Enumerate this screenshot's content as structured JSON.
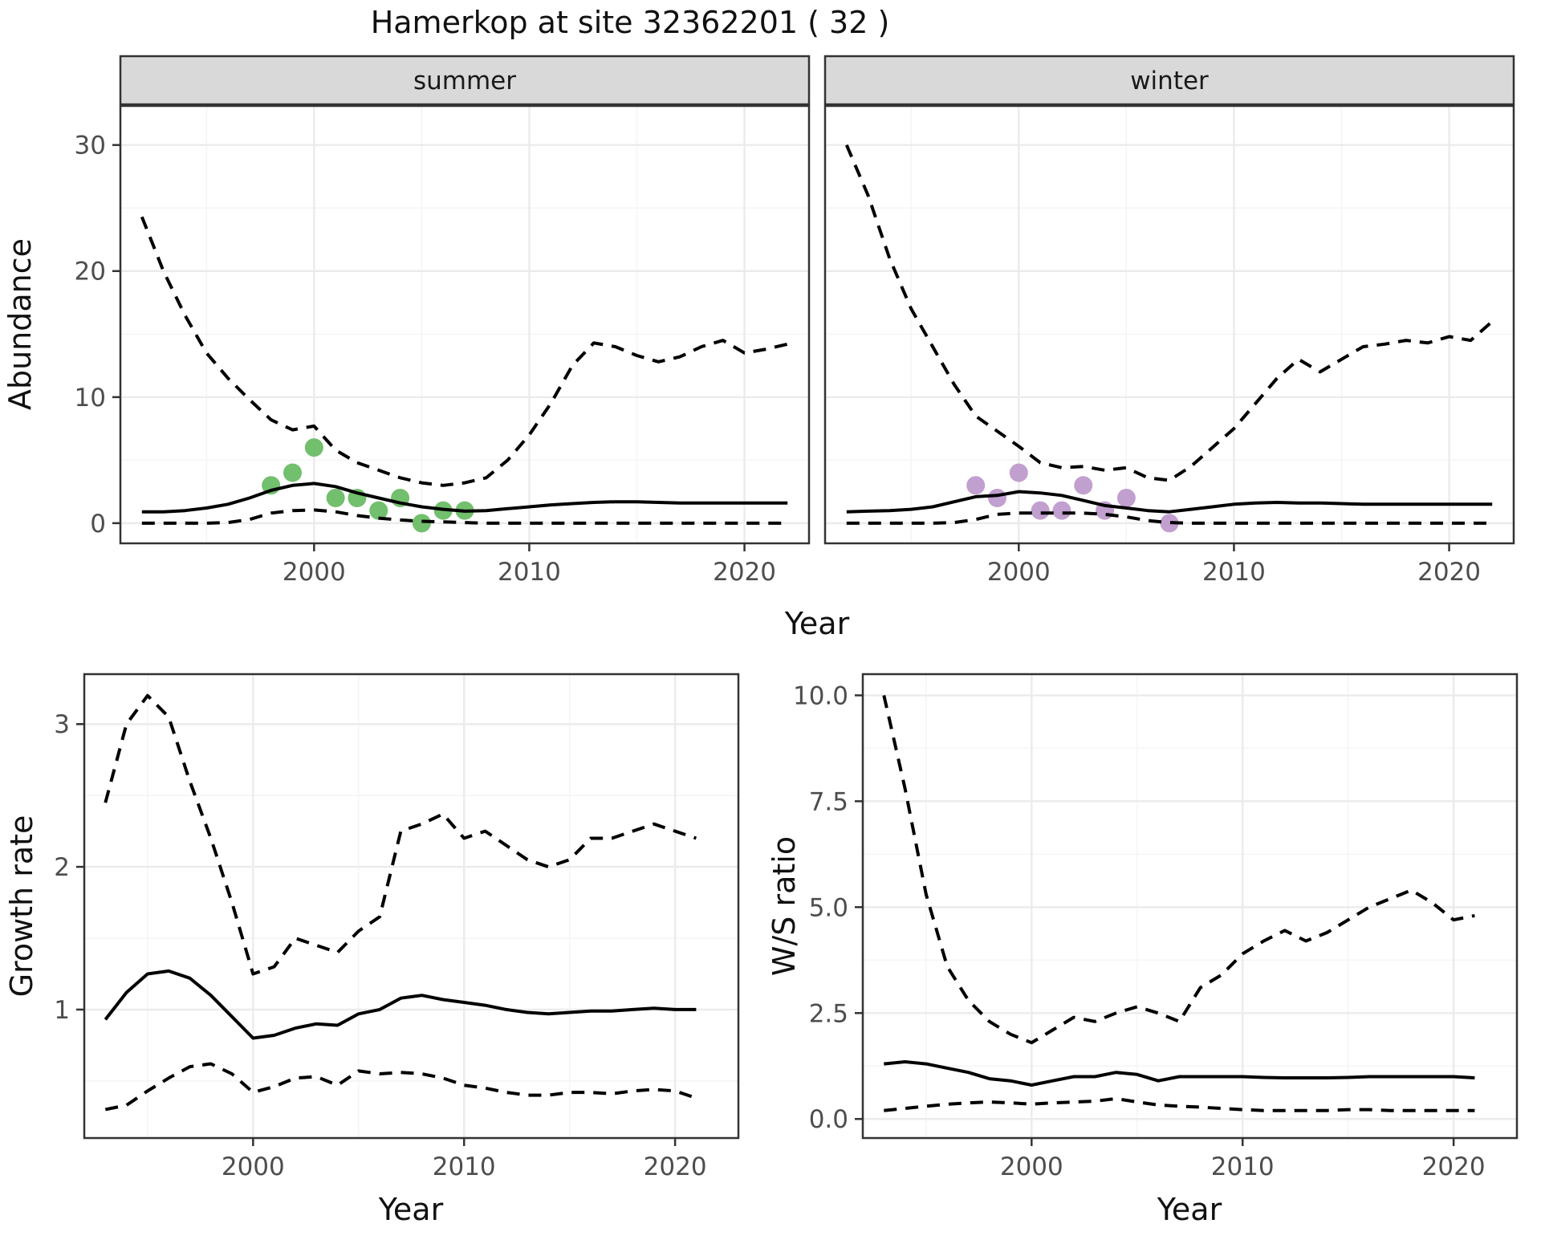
{
  "title": "Hamerkop at site 32362201 ( 32 )",
  "colors": {
    "summer_point": "#72bf6d",
    "winter_point": "#c19fcf",
    "line": "#000000",
    "strip_bg": "#d9d9d9",
    "panel_border": "#333333",
    "grid_major": "#ebebeb",
    "grid_minor": "#f5f5f5",
    "tick_label": "#4d4d4d",
    "axis_title": "#111111"
  },
  "chart_data": [
    {
      "id": "abundance-summer",
      "type": "line",
      "strip_label": "summer",
      "ylabel": "Abundance",
      "xlabel": "Year",
      "x_range": [
        1991,
        2023
      ],
      "y_range": [
        -1.6,
        33.1
      ],
      "x_ticks": [
        2000,
        2010,
        2020
      ],
      "x_tick_labels": [
        "2000",
        "2010",
        "2020"
      ],
      "x_minor": [
        1995,
        2005,
        2015
      ],
      "y_ticks": [
        0,
        10,
        20,
        30
      ],
      "y_tick_labels": [
        "0",
        "10",
        "20",
        "30"
      ],
      "y_minor": [
        5,
        15,
        25
      ],
      "series": [
        {
          "name": "ci-upper",
          "style": "dashed",
          "x_start": 1992,
          "values": [
            24.3,
            20,
            16.5,
            13.5,
            11.5,
            9.8,
            8.2,
            7.4,
            7.7,
            5.8,
            4.8,
            4.2,
            3.6,
            3.2,
            3.0,
            3.2,
            3.6,
            5.0,
            7.0,
            9.5,
            12.5,
            14.3,
            14.0,
            13.3,
            12.8,
            13.2,
            14.0,
            14.5,
            13.5,
            13.8,
            14.2
          ]
        },
        {
          "name": "median",
          "style": "solid",
          "x_start": 1992,
          "values": [
            0.9,
            0.9,
            1.0,
            1.2,
            1.5,
            2.0,
            2.6,
            3.0,
            3.15,
            2.9,
            2.4,
            2.0,
            1.6,
            1.3,
            1.1,
            0.95,
            1.0,
            1.15,
            1.3,
            1.45,
            1.55,
            1.65,
            1.7,
            1.7,
            1.65,
            1.6,
            1.6,
            1.6,
            1.6,
            1.6,
            1.6
          ]
        },
        {
          "name": "ci-lower",
          "style": "dashed",
          "x_start": 1992,
          "values": [
            0,
            0,
            0,
            0,
            0.05,
            0.3,
            0.8,
            1.0,
            1.05,
            0.9,
            0.6,
            0.4,
            0.25,
            0.15,
            0.1,
            0.05,
            0,
            0,
            0,
            0,
            0,
            0,
            0,
            0,
            0,
            0,
            0,
            0,
            0,
            0,
            0
          ]
        }
      ],
      "points": {
        "x": [
          1998,
          1999,
          2000,
          2001,
          2002,
          2003,
          2004,
          2005,
          2006,
          2007
        ],
        "y": [
          3,
          4,
          6,
          2,
          2,
          1,
          2,
          0,
          1,
          1
        ],
        "color_key": "summer_point"
      }
    },
    {
      "id": "abundance-winter",
      "type": "line",
      "strip_label": "winter",
      "ylabel": "Abundance",
      "xlabel": "Year",
      "x_range": [
        1991,
        2023
      ],
      "y_range": [
        -1.6,
        33.1
      ],
      "x_ticks": [
        2000,
        2010,
        2020
      ],
      "x_tick_labels": [
        "2000",
        "2010",
        "2020"
      ],
      "x_minor": [
        1995,
        2005,
        2015
      ],
      "y_ticks": [
        0,
        10,
        20,
        30
      ],
      "y_tick_labels": [
        "0",
        "10",
        "20",
        "30"
      ],
      "y_minor": [
        5,
        15,
        25
      ],
      "series": [
        {
          "name": "ci-upper",
          "style": "dashed",
          "x_start": 1992,
          "values": [
            30,
            26,
            21,
            17,
            14,
            11,
            8.5,
            7.3,
            6.1,
            4.8,
            4.4,
            4.5,
            4.2,
            4.4,
            3.6,
            3.4,
            4.5,
            6.0,
            7.5,
            9.5,
            11.5,
            13.0,
            12.0,
            13.0,
            14.0,
            14.2,
            14.5,
            14.3,
            14.8,
            14.5,
            16.0
          ]
        },
        {
          "name": "median",
          "style": "solid",
          "x_start": 1992,
          "values": [
            0.9,
            0.95,
            1.0,
            1.1,
            1.3,
            1.7,
            2.1,
            2.2,
            2.5,
            2.4,
            2.2,
            1.8,
            1.4,
            1.2,
            1.0,
            0.9,
            1.1,
            1.3,
            1.5,
            1.6,
            1.65,
            1.6,
            1.6,
            1.55,
            1.5,
            1.5,
            1.5,
            1.5,
            1.5,
            1.5,
            1.5
          ]
        },
        {
          "name": "ci-lower",
          "style": "dashed",
          "x_start": 1992,
          "values": [
            0,
            0,
            0,
            0,
            0,
            0.05,
            0.3,
            0.7,
            0.8,
            0.8,
            0.8,
            0.8,
            0.7,
            0.5,
            0.2,
            0.05,
            0,
            0,
            0,
            0,
            0,
            0,
            0,
            0,
            0,
            0,
            0,
            0,
            0,
            0,
            0
          ]
        }
      ],
      "points": {
        "x": [
          1998,
          1999,
          2000,
          2001,
          2002,
          2003,
          2004,
          2005,
          2007
        ],
        "y": [
          3,
          2,
          4,
          1,
          1,
          3,
          1,
          2,
          0
        ],
        "color_key": "winter_point"
      }
    },
    {
      "id": "growth-rate",
      "type": "line",
      "strip_label": "",
      "ylabel": "Growth rate",
      "xlabel": "Year",
      "x_range": [
        1992,
        2023
      ],
      "y_range": [
        0.1,
        3.35
      ],
      "x_ticks": [
        2000,
        2010,
        2020
      ],
      "x_tick_labels": [
        "2000",
        "2010",
        "2020"
      ],
      "x_minor": [
        1995,
        2005,
        2015
      ],
      "y_ticks": [
        1,
        2,
        3
      ],
      "y_tick_labels": [
        "1",
        "2",
        "3"
      ],
      "y_minor": [
        0.5,
        1.5,
        2.5
      ],
      "series": [
        {
          "name": "ci-upper",
          "style": "dashed",
          "x_start": 1993,
          "values": [
            2.45,
            3.0,
            3.2,
            3.05,
            2.6,
            2.2,
            1.75,
            1.25,
            1.3,
            1.5,
            1.45,
            1.4,
            1.55,
            1.65,
            2.25,
            2.3,
            2.37,
            2.2,
            2.25,
            2.15,
            2.05,
            2.0,
            2.05,
            2.2,
            2.2,
            2.25,
            2.3,
            2.25,
            2.2
          ]
        },
        {
          "name": "median",
          "style": "solid",
          "x_start": 1993,
          "values": [
            0.93,
            1.12,
            1.25,
            1.27,
            1.22,
            1.1,
            0.95,
            0.8,
            0.82,
            0.87,
            0.9,
            0.89,
            0.97,
            1.0,
            1.08,
            1.1,
            1.07,
            1.05,
            1.03,
            1.0,
            0.98,
            0.97,
            0.98,
            0.99,
            0.99,
            1.0,
            1.01,
            1.0,
            1.0
          ]
        },
        {
          "name": "ci-lower",
          "style": "dashed",
          "x_start": 1993,
          "values": [
            0.3,
            0.33,
            0.43,
            0.52,
            0.6,
            0.62,
            0.55,
            0.42,
            0.46,
            0.52,
            0.53,
            0.47,
            0.57,
            0.55,
            0.56,
            0.55,
            0.52,
            0.47,
            0.45,
            0.42,
            0.4,
            0.4,
            0.42,
            0.42,
            0.41,
            0.43,
            0.44,
            0.43,
            0.38
          ]
        }
      ],
      "points": null
    },
    {
      "id": "ws-ratio",
      "type": "line",
      "strip_label": "",
      "ylabel": "W/S ratio",
      "xlabel": "Year",
      "x_range": [
        1992,
        2023
      ],
      "y_range": [
        -0.45,
        10.5
      ],
      "x_ticks": [
        2000,
        2010,
        2020
      ],
      "x_tick_labels": [
        "2000",
        "2010",
        "2020"
      ],
      "x_minor": [
        1995,
        2005,
        2015
      ],
      "y_ticks": [
        0,
        2.5,
        5,
        7.5,
        10
      ],
      "y_tick_labels": [
        "0.0",
        "2.5",
        "5.0",
        "7.5",
        "10.0"
      ],
      "y_minor": [
        1.25,
        3.75,
        6.25,
        8.75
      ],
      "series": [
        {
          "name": "ci-upper",
          "style": "dashed",
          "x_start": 1993,
          "values": [
            10.0,
            7.8,
            5.3,
            3.6,
            2.8,
            2.3,
            2.0,
            1.8,
            2.1,
            2.4,
            2.3,
            2.5,
            2.65,
            2.5,
            2.3,
            3.1,
            3.4,
            3.9,
            4.2,
            4.45,
            4.2,
            4.4,
            4.7,
            5.0,
            5.2,
            5.4,
            5.1,
            4.7,
            4.8
          ]
        },
        {
          "name": "median",
          "style": "solid",
          "x_start": 1993,
          "values": [
            1.3,
            1.35,
            1.3,
            1.2,
            1.1,
            0.95,
            0.9,
            0.8,
            0.9,
            1.0,
            1.0,
            1.1,
            1.05,
            0.9,
            1.0,
            1.0,
            1.0,
            1.0,
            0.98,
            0.97,
            0.97,
            0.97,
            0.98,
            1.0,
            1.0,
            1.0,
            1.0,
            1.0,
            0.97
          ]
        },
        {
          "name": "ci-lower",
          "style": "dashed",
          "x_start": 1993,
          "values": [
            0.2,
            0.25,
            0.3,
            0.35,
            0.38,
            0.4,
            0.38,
            0.35,
            0.38,
            0.4,
            0.42,
            0.48,
            0.4,
            0.33,
            0.3,
            0.28,
            0.25,
            0.22,
            0.2,
            0.2,
            0.2,
            0.2,
            0.22,
            0.22,
            0.2,
            0.2,
            0.2,
            0.2,
            0.2
          ]
        }
      ],
      "points": null
    }
  ],
  "axis_titles": {
    "top_x": "Year",
    "bottom_left_x": "Year",
    "bottom_right_x": "Year"
  }
}
